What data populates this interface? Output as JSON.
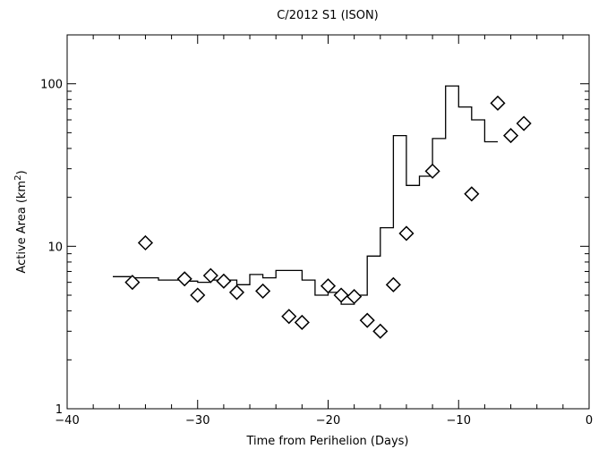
{
  "chart_data": {
    "type": "scatter",
    "title": "C/2012 S1 (ISON)",
    "xlabel": "Time from Perihelion (Days)",
    "ylabel": "Active Area (km",
    "ylabel_sup": "2",
    "ylabel_close": ")",
    "xlim": [
      -40,
      0
    ],
    "ylim": [
      1,
      200
    ],
    "y_scale": "log",
    "grid": false,
    "x_ticks": [
      -40,
      -30,
      -20,
      -10,
      0
    ],
    "x_tick_labels": [
      "−40",
      "−30",
      "−20",
      "−10",
      "0"
    ],
    "x_minor_step": 2,
    "y_ticks": [
      1,
      10,
      100
    ],
    "y_tick_labels": [
      "1",
      "10",
      "100"
    ],
    "series": [
      {
        "style": "step",
        "color": "#000000",
        "points": [
          [
            -36.5,
            6.5
          ],
          [
            -35,
            6.4
          ],
          [
            -33,
            6.2
          ],
          [
            -31,
            6.1
          ],
          [
            -30,
            6.0
          ],
          [
            -29,
            6.2
          ],
          [
            -28,
            6.2
          ],
          [
            -27,
            5.8
          ],
          [
            -26,
            6.7
          ],
          [
            -25,
            6.4
          ],
          [
            -24,
            7.1
          ],
          [
            -22,
            6.2
          ],
          [
            -21,
            5.0
          ],
          [
            -20,
            5.2
          ],
          [
            -19,
            4.4
          ],
          [
            -18,
            5.0
          ],
          [
            -17,
            8.7
          ],
          [
            -16,
            13.0
          ],
          [
            -15,
            48.0
          ],
          [
            -14,
            23.7
          ],
          [
            -13,
            27.0
          ],
          [
            -12,
            46.0
          ],
          [
            -11,
            97.0
          ],
          [
            -10,
            72.0
          ],
          [
            -9,
            60.0
          ],
          [
            -8,
            44.0
          ],
          [
            -7,
            44.0
          ]
        ]
      },
      {
        "style": "diamond",
        "color": "#000000",
        "points": [
          [
            -35,
            6.0
          ],
          [
            -34,
            10.5
          ],
          [
            -31,
            6.3
          ],
          [
            -30,
            5.0
          ],
          [
            -29,
            6.6
          ],
          [
            -28,
            6.1
          ],
          [
            -27,
            5.2
          ],
          [
            -25,
            5.3
          ],
          [
            -23,
            3.7
          ],
          [
            -22,
            3.4
          ],
          [
            -20,
            5.7
          ],
          [
            -19,
            5.0
          ],
          [
            -18,
            4.9
          ],
          [
            -17,
            3.5
          ],
          [
            -16,
            3.0
          ],
          [
            -15,
            5.8
          ],
          [
            -14,
            12.0
          ],
          [
            -12,
            29.0
          ],
          [
            -9,
            21.0
          ],
          [
            -7,
            76.0
          ],
          [
            -6,
            48.0
          ],
          [
            -5,
            57.0
          ]
        ]
      }
    ]
  }
}
